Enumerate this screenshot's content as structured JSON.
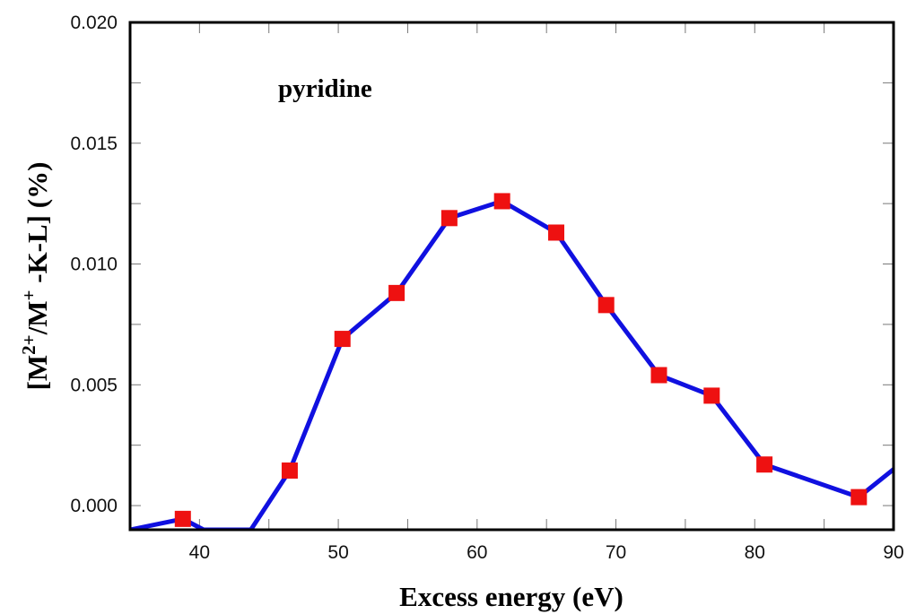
{
  "chart_data": {
    "type": "line",
    "annotation": "pyridine",
    "xlabel": "Excess energy (eV)",
    "ylabel": {
      "open": "[M",
      "sup1": "2+",
      "mid": "/M",
      "sup2": "+",
      "close": " -K-L] (%)"
    },
    "xlim": [
      35,
      90
    ],
    "ylim": [
      -0.001,
      0.02
    ],
    "x_ticks": [
      40,
      50,
      60,
      70,
      80,
      90
    ],
    "x_tick_labels": [
      "40",
      "50",
      "60",
      "70",
      "80",
      "90"
    ],
    "y_ticks": [
      0.0,
      0.005,
      0.01,
      0.015,
      0.02
    ],
    "y_tick_labels": [
      "0.000",
      "0.005",
      "0.010",
      "0.015",
      "0.020"
    ],
    "grid": false,
    "line_color": "#1010e0",
    "marker_color": "#ee1111",
    "line": {
      "x": [
        35,
        38.8,
        40.3,
        43.7,
        46.5,
        50.3,
        54.2,
        58.0,
        61.8,
        65.7,
        69.3,
        73.1,
        76.9,
        80.7,
        87.5,
        90
      ],
      "y": [
        -0.001,
        -0.00055,
        -0.001,
        -0.001,
        0.00145,
        0.0069,
        0.0088,
        0.0119,
        0.0126,
        0.0113,
        0.0083,
        0.0054,
        0.00455,
        0.0017,
        0.00035,
        0.0015
      ]
    },
    "markers": {
      "x": [
        38.8,
        46.5,
        50.3,
        54.2,
        58.0,
        61.8,
        65.7,
        69.3,
        73.1,
        76.9,
        80.7,
        87.5
      ],
      "y": [
        -0.00055,
        0.00145,
        0.0069,
        0.0088,
        0.0119,
        0.0126,
        0.0113,
        0.0083,
        0.0054,
        0.00455,
        0.0017,
        0.00035
      ]
    }
  }
}
